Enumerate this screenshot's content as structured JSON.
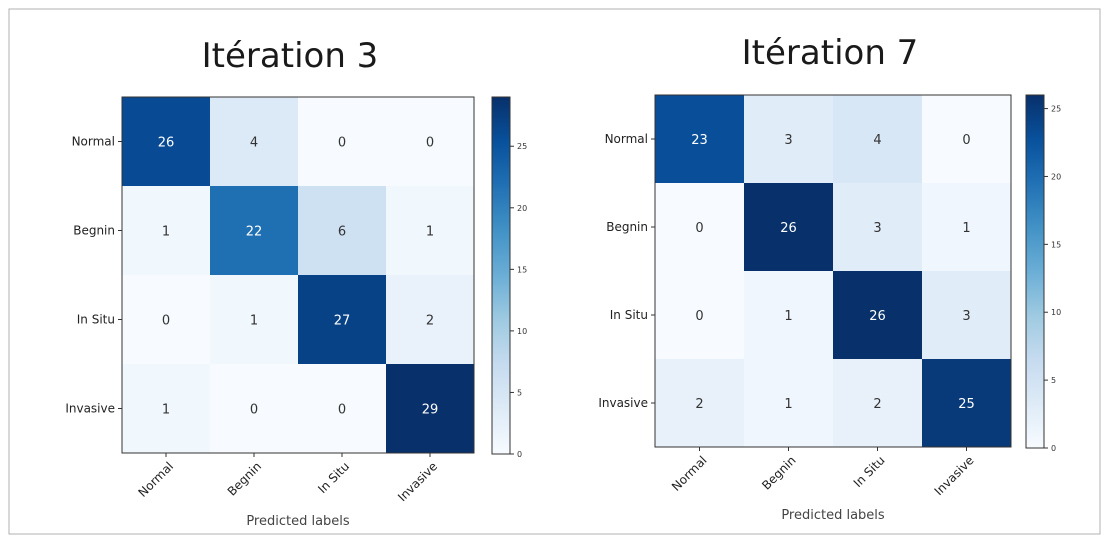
{
  "chart_data": [
    {
      "type": "heatmap",
      "title": "Itération 3",
      "xlabel": "Predicted labels",
      "ylabel": "",
      "x_categories": [
        "Normal",
        "Begnin",
        "In Situ",
        "Invasive"
      ],
      "y_categories": [
        "Normal",
        "Begnin",
        "In Situ",
        "Invasive"
      ],
      "values": [
        [
          26,
          4,
          0,
          0
        ],
        [
          1,
          22,
          6,
          1
        ],
        [
          0,
          1,
          27,
          2
        ],
        [
          1,
          0,
          0,
          29
        ]
      ],
      "colorbar": {
        "min": 0,
        "max": 29,
        "ticks": [
          0,
          5,
          10,
          15,
          20,
          25
        ]
      },
      "colormap": {
        "low": "#f7fbff",
        "high": "#08306b"
      }
    },
    {
      "type": "heatmap",
      "title": "Itération 7",
      "xlabel": "Predicted labels",
      "ylabel": "",
      "x_categories": [
        "Normal",
        "Begnin",
        "In Situ",
        "Invasive"
      ],
      "y_categories": [
        "Normal",
        "Begnin",
        "In Situ",
        "Invasive"
      ],
      "values": [
        [
          23,
          3,
          4,
          0
        ],
        [
          0,
          26,
          3,
          1
        ],
        [
          0,
          1,
          26,
          3
        ],
        [
          2,
          1,
          2,
          25
        ]
      ],
      "colorbar": {
        "min": 0,
        "max": 26,
        "ticks": [
          0,
          5,
          10,
          15,
          20,
          25
        ]
      },
      "colormap": {
        "low": "#f7fbff",
        "high": "#08306b"
      }
    }
  ]
}
